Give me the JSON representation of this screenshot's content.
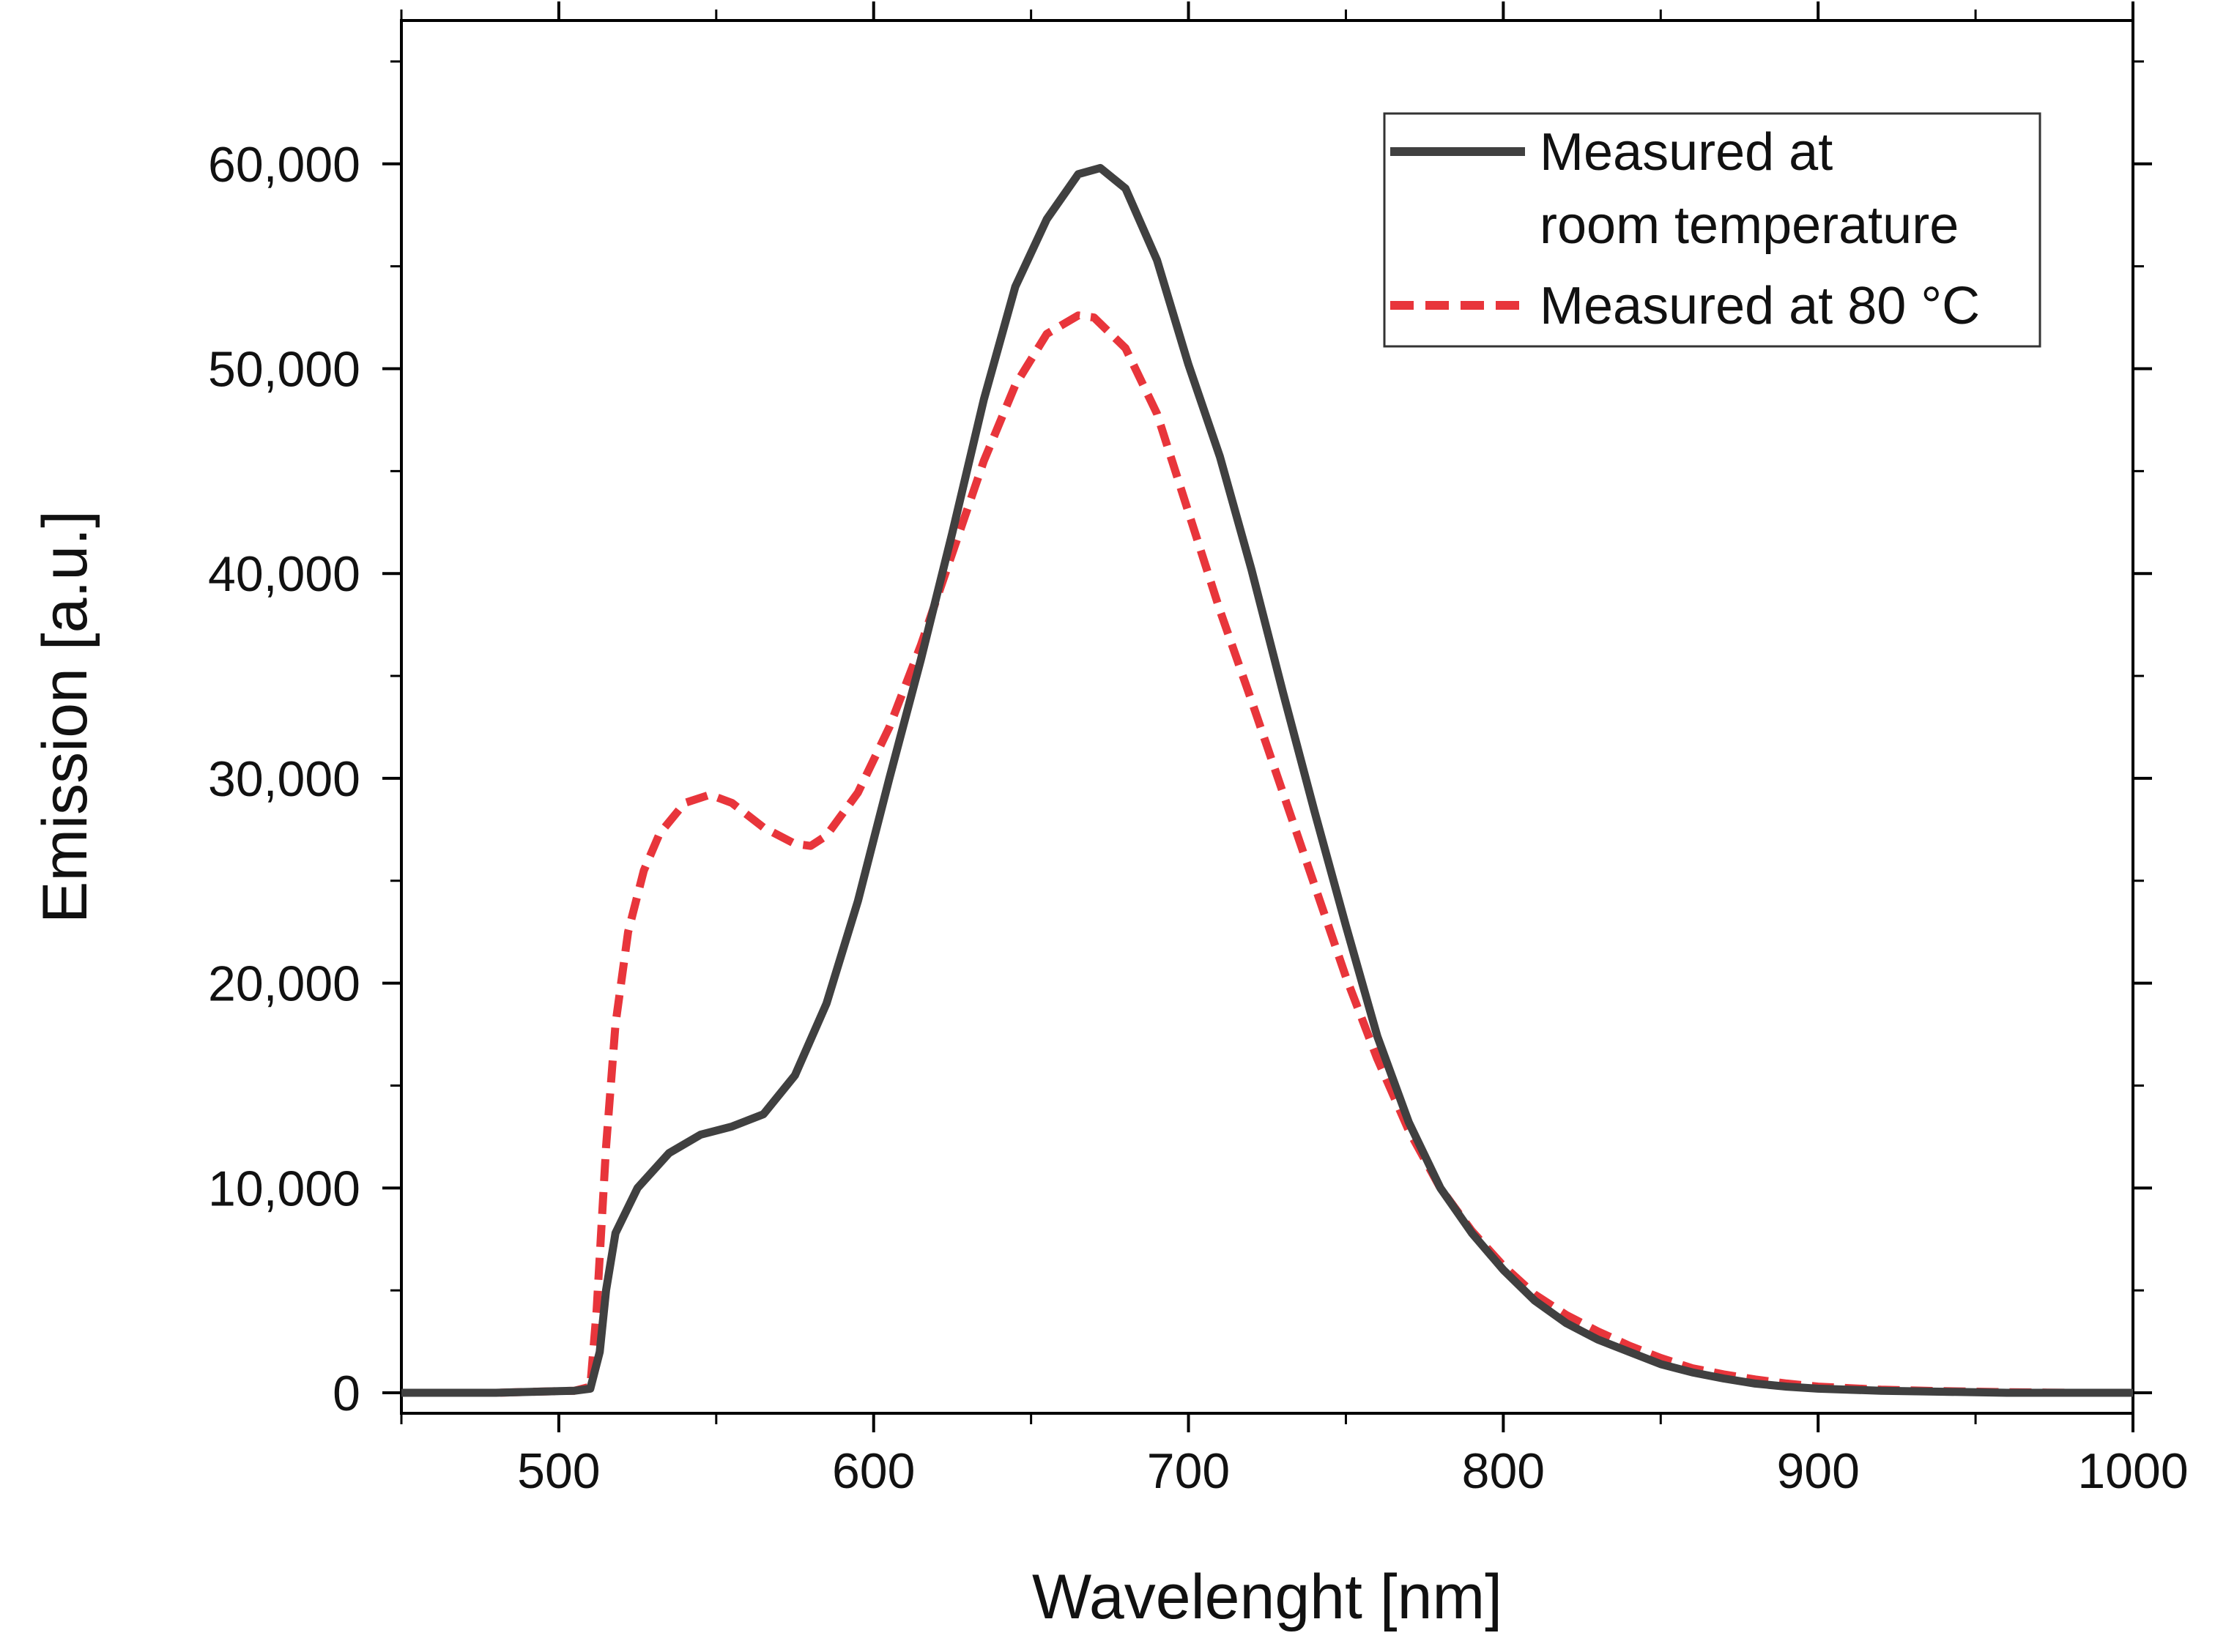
{
  "chart_data": {
    "type": "line",
    "title": "",
    "xlabel": "Wavelenght [nm]",
    "ylabel": "Emission [a.u.]",
    "xlim": [
      450,
      1000
    ],
    "ylim": [
      -1000,
      67000
    ],
    "grid": false,
    "legend_position": "top-right",
    "x_ticks": [
      {
        "value": 500,
        "label": "500"
      },
      {
        "value": 600,
        "label": "600"
      },
      {
        "value": 700,
        "label": "700"
      },
      {
        "value": 800,
        "label": "800"
      },
      {
        "value": 900,
        "label": "900"
      },
      {
        "value": 1000,
        "label": "1000"
      }
    ],
    "x_minor_ticks": [
      450,
      550,
      650,
      750,
      850,
      950
    ],
    "y_ticks": [
      {
        "value": 0,
        "label": "0"
      },
      {
        "value": 10000,
        "label": "10,000"
      },
      {
        "value": 20000,
        "label": "20,000"
      },
      {
        "value": 30000,
        "label": "30,000"
      },
      {
        "value": 40000,
        "label": "40,000"
      },
      {
        "value": 50000,
        "label": "50,000"
      },
      {
        "value": 60000,
        "label": "60,000"
      }
    ],
    "y_minor_ticks": [
      5000,
      15000,
      25000,
      35000,
      45000,
      55000,
      65000
    ],
    "series": [
      {
        "name": "Measured at room temperature",
        "legend_lines": [
          "Measured at",
          "room temperature"
        ],
        "color": "#404040",
        "style": "solid",
        "x": [
          450,
          480,
          505,
          510,
          513,
          515,
          518,
          525,
          535,
          545,
          555,
          565,
          575,
          585,
          595,
          605,
          615,
          625,
          635,
          645,
          655,
          665,
          672,
          680,
          690,
          700,
          710,
          720,
          730,
          740,
          750,
          760,
          770,
          780,
          790,
          800,
          810,
          820,
          830,
          840,
          850,
          860,
          870,
          880,
          890,
          900,
          920,
          940,
          960,
          980,
          1000
        ],
        "y": [
          0,
          0,
          100,
          200,
          2000,
          5000,
          7800,
          10000,
          11700,
          12600,
          13000,
          13600,
          15500,
          19000,
          24000,
          30000,
          35800,
          42000,
          48500,
          54000,
          57300,
          59500,
          59800,
          58800,
          55300,
          50200,
          45700,
          40200,
          34200,
          28400,
          22800,
          17400,
          13200,
          10000,
          7800,
          6000,
          4500,
          3400,
          2600,
          2000,
          1400,
          1000,
          700,
          450,
          300,
          200,
          100,
          50,
          0,
          0,
          0
        ]
      },
      {
        "name": "Measured at 80 °C",
        "legend_lines": [
          "Measured at 80 °C"
        ],
        "color": "#e8353b",
        "style": "dashed",
        "x": [
          450,
          480,
          505,
          510,
          512,
          515,
          518,
          522,
          527,
          532,
          540,
          548,
          555,
          565,
          575,
          580,
          585,
          595,
          605,
          615,
          625,
          635,
          645,
          655,
          665,
          670,
          680,
          690,
          700,
          710,
          720,
          730,
          740,
          750,
          760,
          770,
          780,
          790,
          800,
          810,
          820,
          830,
          840,
          850,
          860,
          870,
          880,
          890,
          900,
          920,
          940,
          960,
          980,
          1000
        ],
        "y": [
          0,
          0,
          100,
          300,
          4000,
          12000,
          18000,
          22500,
          25500,
          27300,
          28800,
          29200,
          28800,
          27600,
          26800,
          26700,
          27200,
          29300,
          32500,
          36500,
          41000,
          45500,
          49200,
          51700,
          52600,
          52500,
          51000,
          47800,
          43000,
          38200,
          33800,
          29300,
          24800,
          20300,
          16300,
          12800,
          10000,
          7900,
          6200,
          4800,
          3800,
          3000,
          2300,
          1700,
          1200,
          900,
          650,
          450,
          300,
          150,
          80,
          30,
          0,
          0
        ]
      }
    ]
  }
}
